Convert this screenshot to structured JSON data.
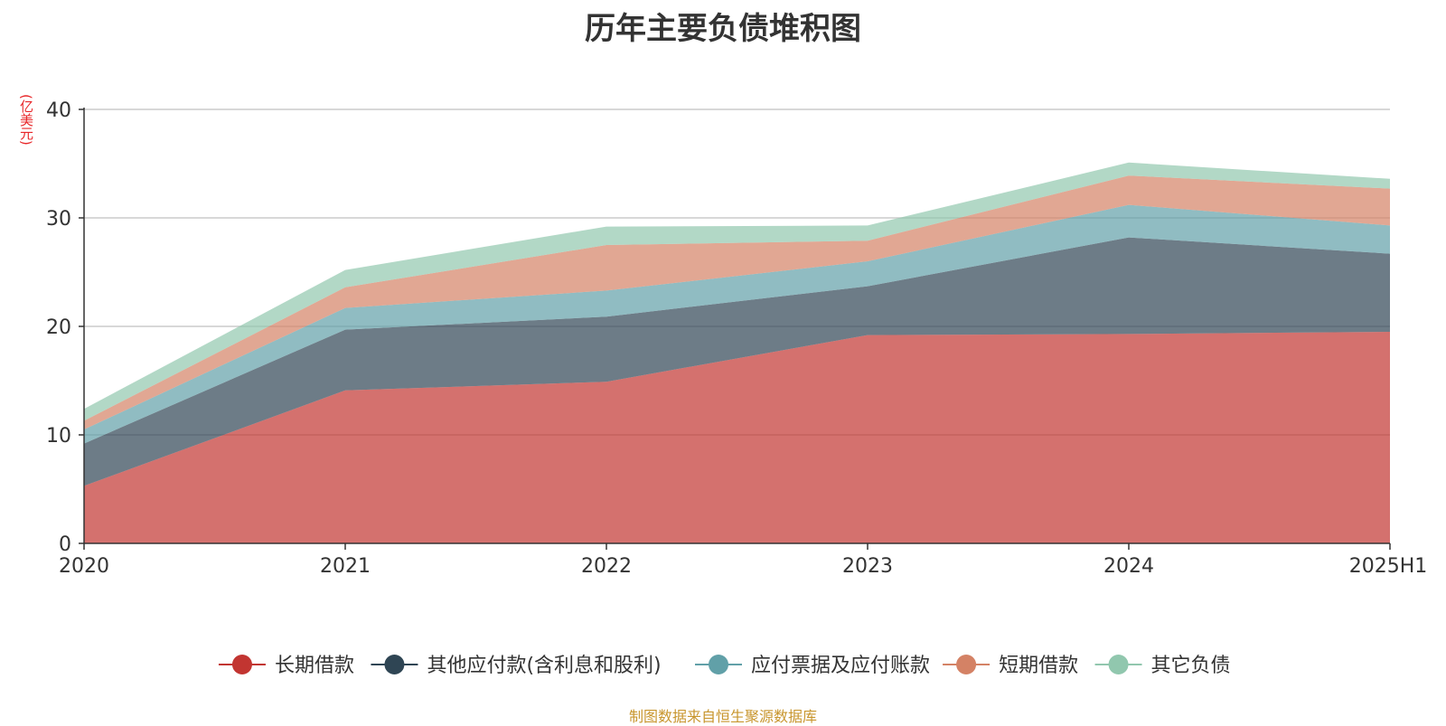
{
  "title": "历年主要负债堆积图",
  "unit_label": "(亿美元)",
  "source": "制图数据来自恒生聚源数据库",
  "chart_data": {
    "type": "area",
    "stacked": true,
    "title": "历年主要负债堆积图",
    "ylabel": "(亿美元)",
    "xlabel": "",
    "categories": [
      "2020",
      "2021",
      "2022",
      "2023",
      "2024",
      "2025H1"
    ],
    "ylim": [
      0,
      40
    ],
    "yticks": [
      0,
      10,
      20,
      30,
      40
    ],
    "grid": true,
    "legend_position": "bottom",
    "series": [
      {
        "name": "长期借款",
        "color": "#c23531",
        "values": [
          5.3,
          14.1,
          14.9,
          19.2,
          19.3,
          19.5
        ]
      },
      {
        "name": "其他应付款(含利息和股利)",
        "color": "#2f4554",
        "values": [
          3.9,
          5.6,
          6.0,
          4.5,
          8.9,
          7.2
        ]
      },
      {
        "name": "应付票据及应付账款",
        "color": "#61a0a8",
        "values": [
          1.3,
          2.0,
          2.4,
          2.3,
          3.0,
          2.6
        ]
      },
      {
        "name": "短期借款",
        "color": "#d48265",
        "values": [
          0.8,
          1.9,
          4.2,
          1.9,
          2.7,
          3.4
        ]
      },
      {
        "name": "其它负债",
        "color": "#91c7ae",
        "values": [
          1.1,
          1.6,
          1.7,
          1.4,
          1.2,
          0.9
        ]
      }
    ]
  }
}
